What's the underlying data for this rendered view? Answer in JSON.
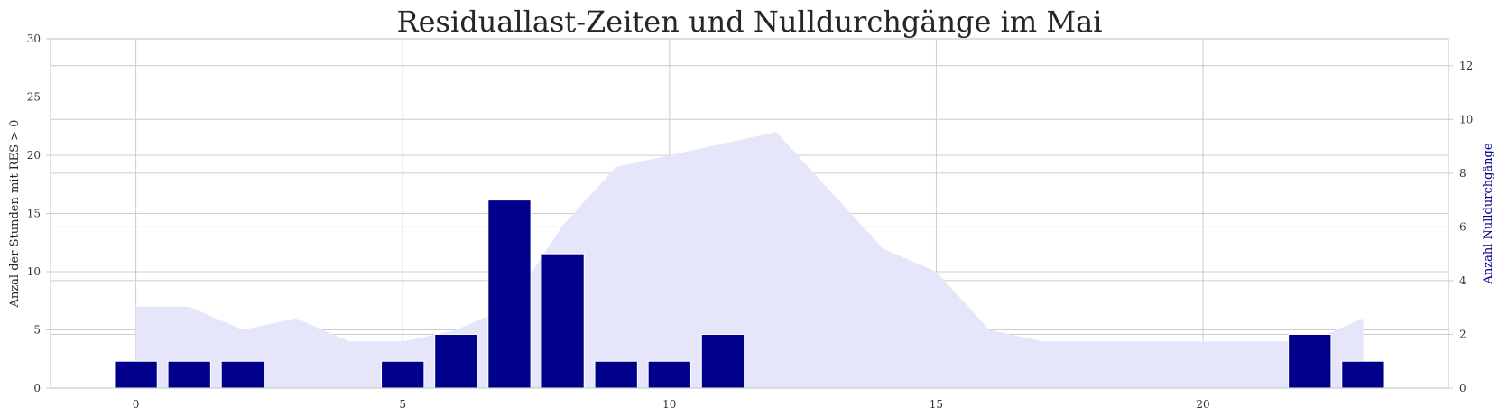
{
  "chart_data": {
    "type": "bar",
    "title": "Residuallast-Zeiten und Nulldurchgänge im Mai",
    "xlabel": "",
    "ylabel_left": "Anzal der Stunden mit RES > 0",
    "ylabel_right": "Anzahl Nulldurchgänge",
    "xlim": [
      -1.6,
      24.6
    ],
    "ylim_left": [
      0,
      30
    ],
    "ylim_right": [
      0,
      13
    ],
    "x_ticks": [
      0,
      5,
      10,
      15,
      20
    ],
    "y_ticks_left": [
      0,
      5,
      10,
      15,
      20,
      25,
      30
    ],
    "y_ticks_right": [
      0,
      2,
      4,
      6,
      8,
      10,
      12
    ],
    "grid": true,
    "series": [
      {
        "type": "area",
        "axis": "left",
        "x": [
          0,
          1,
          2,
          3,
          4,
          5,
          6,
          7,
          8,
          9,
          10,
          11,
          12,
          13,
          14,
          15,
          16,
          17,
          18,
          19,
          20,
          21,
          22,
          23
        ],
        "values": [
          7,
          7,
          5,
          6,
          4,
          4,
          5,
          7,
          14,
          19,
          20,
          21,
          22,
          17,
          12,
          10,
          5,
          4,
          4,
          4,
          4,
          4,
          4,
          6
        ]
      },
      {
        "type": "bar",
        "axis": "right",
        "x": [
          0,
          1,
          2,
          5,
          6,
          7,
          8,
          9,
          10,
          11,
          22,
          23
        ],
        "values": [
          1,
          1,
          1,
          1,
          2,
          7,
          5,
          1,
          1,
          2,
          2,
          1
        ]
      }
    ],
    "colors": {
      "area": "#e6e6fa",
      "bar": "#00008b",
      "grid": "#cccccc",
      "right_label": "#00008b"
    }
  }
}
